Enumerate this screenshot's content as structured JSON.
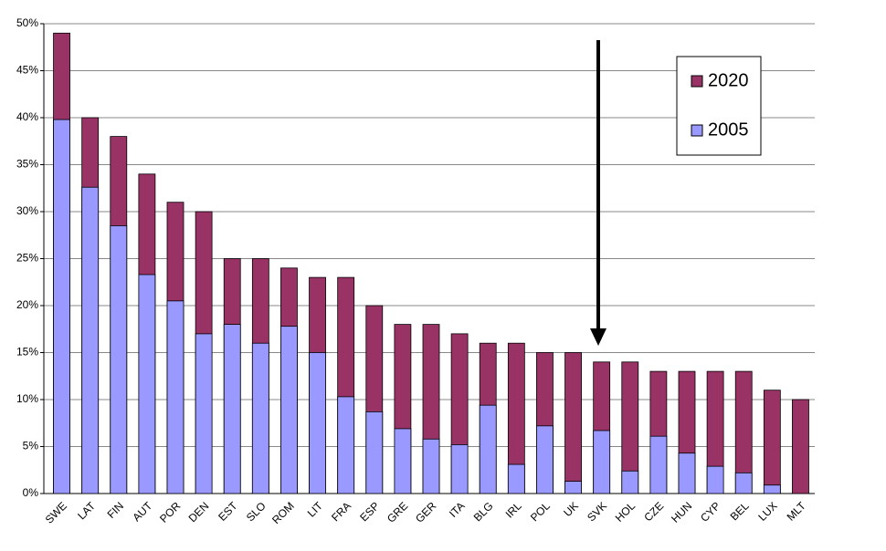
{
  "chart_data": {
    "type": "bar",
    "categories": [
      "SWE",
      "LAT",
      "FIN",
      "AUT",
      "POR",
      "DEN",
      "EST",
      "SLO",
      "ROM",
      "LIT",
      "FRA",
      "ESP",
      "GRE",
      "GER",
      "ITA",
      "BLG",
      "IRL",
      "POL",
      "UK",
      "SVK",
      "HOL",
      "CZE",
      "HUN",
      "CYP",
      "BEL",
      "LUX",
      "MLT"
    ],
    "series": [
      {
        "name": "2020",
        "color": "#993366",
        "values": [
          49,
          40,
          38,
          34,
          31,
          30,
          25,
          25,
          24,
          23,
          23,
          20,
          18,
          18,
          17,
          16,
          16,
          15,
          15,
          14,
          14,
          13,
          13,
          13,
          13,
          11,
          10
        ]
      },
      {
        "name": "2005",
        "color": "#9999ff",
        "values": [
          39.8,
          32.6,
          28.5,
          23.3,
          20.5,
          17,
          18,
          16,
          17.8,
          15,
          10.3,
          8.7,
          6.9,
          5.8,
          5.2,
          9.4,
          3.1,
          7.2,
          1.3,
          6.7,
          2.4,
          6.1,
          4.3,
          2.9,
          2.2,
          0.9,
          0
        ]
      }
    ],
    "ylim": [
      0,
      50
    ],
    "yticks": [
      {
        "value": 0,
        "label": "0%"
      },
      {
        "value": 5,
        "label": "5%"
      },
      {
        "value": 10,
        "label": "10%"
      },
      {
        "value": 15,
        "label": "15%"
      },
      {
        "value": 20,
        "label": "20%"
      },
      {
        "value": 25,
        "label": "25%"
      },
      {
        "value": 30,
        "label": "30%"
      },
      {
        "value": 35,
        "label": "35%"
      },
      {
        "value": 40,
        "label": "40%"
      },
      {
        "value": 45,
        "label": "45%"
      },
      {
        "value": 50,
        "label": "50%"
      }
    ],
    "grid": true
  }
}
